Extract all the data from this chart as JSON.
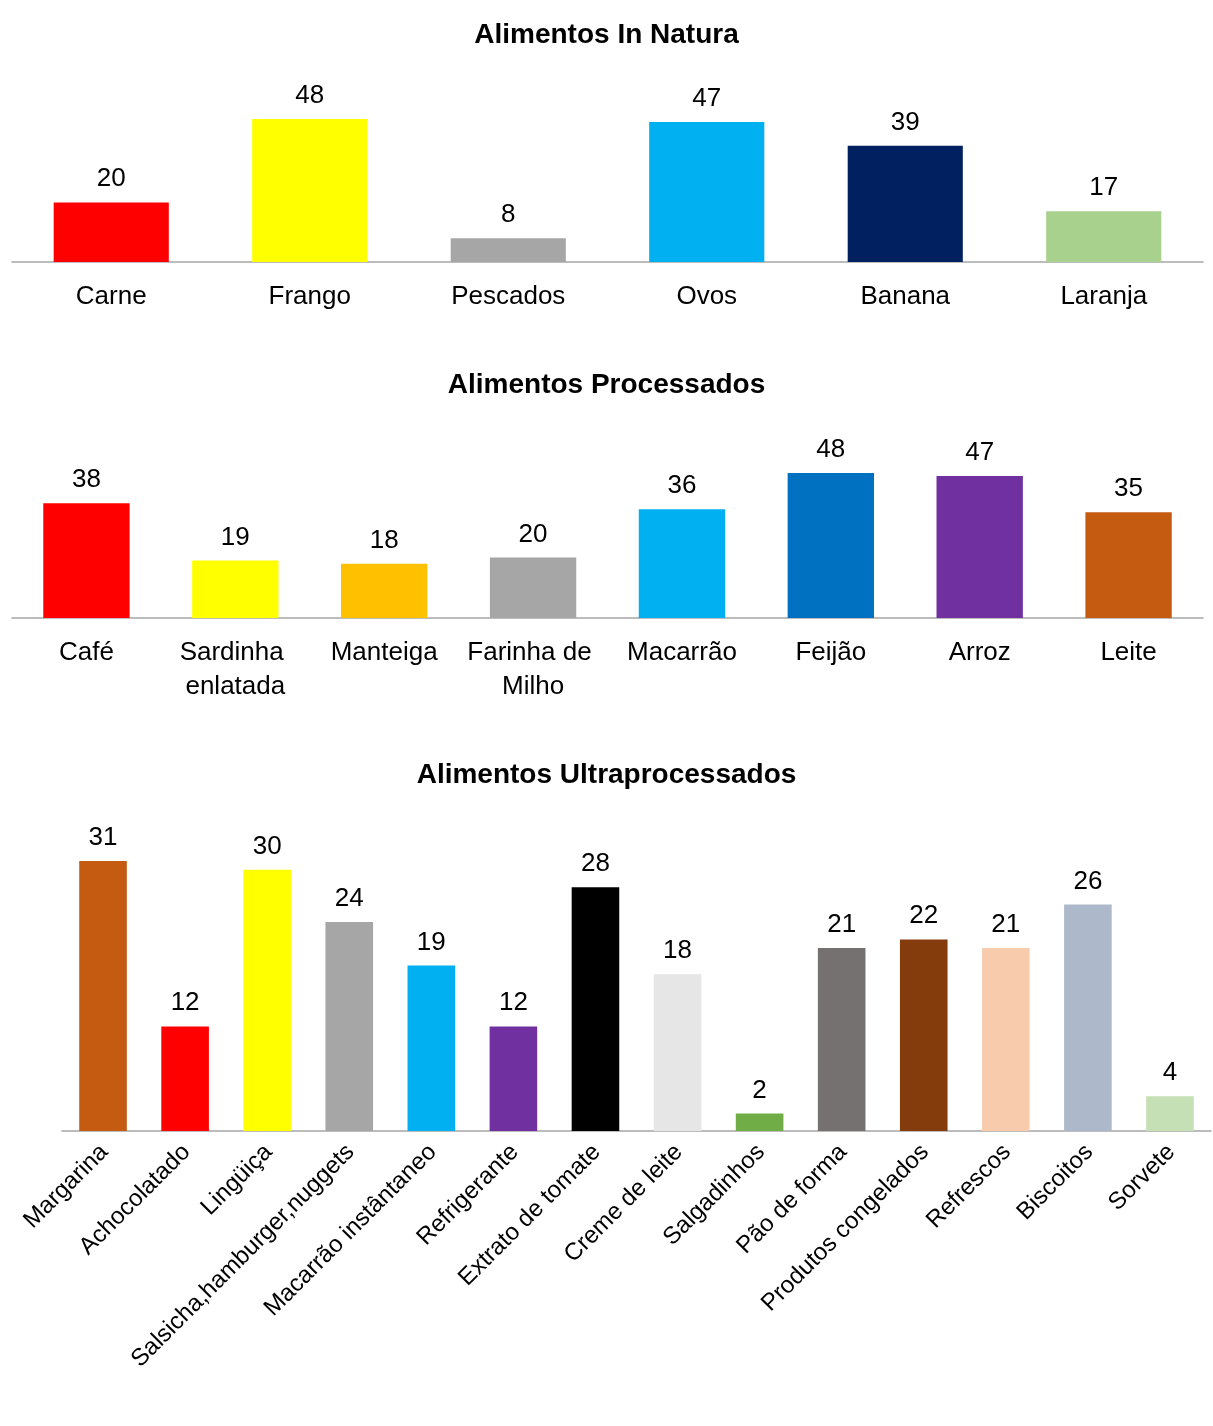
{
  "chart_data": [
    {
      "type": "bar",
      "title": "Alimentos In Natura",
      "categories": [
        "Carne",
        "Frango",
        "Pescados",
        "Ovos",
        "Banana",
        "Laranja"
      ],
      "values": [
        20,
        48,
        8,
        47,
        39,
        17
      ],
      "colors": [
        "#ff0000",
        "#ffff00",
        "#a6a6a6",
        "#00b0f0",
        "#002060",
        "#a9d18e"
      ],
      "data_labels": true
    },
    {
      "type": "bar",
      "title": "Alimentos Processados",
      "categories": [
        "Café",
        "Sardinha enlatada",
        "Manteiga",
        "Farinha de Milho",
        "Macarrão",
        "Feijão",
        "Arroz",
        "Leite"
      ],
      "values": [
        38,
        19,
        18,
        20,
        36,
        48,
        47,
        35
      ],
      "colors": [
        "#ff0000",
        "#ffff00",
        "#ffc000",
        "#a6a6a6",
        "#00b0f0",
        "#0070c0",
        "#7030a0",
        "#c55a11"
      ],
      "data_labels": true
    },
    {
      "type": "bar",
      "title": "Alimentos Ultraprocessados",
      "categories": [
        "Margarina",
        "Achocolatado",
        "Lingüiça",
        "Salsicha,hamburger,nuggets",
        "Macarrão instântaneo",
        "Refrigerante",
        "Extrato de tomate",
        "Creme de leite",
        "Salgadinhos",
        "Pão de forma",
        "Produtos congelados",
        "Refrescos",
        "Biscoitos",
        "Sorvete"
      ],
      "values": [
        31,
        12,
        30,
        24,
        19,
        12,
        28,
        18,
        2,
        21,
        22,
        21,
        26,
        4
      ],
      "colors": [
        "#c55a11",
        "#ff0000",
        "#ffff00",
        "#a6a6a6",
        "#00b0f0",
        "#7030a0",
        "#000000",
        "#e7e6e6",
        "#70ad47",
        "#767171",
        "#843c0c",
        "#f8cbad",
        "#adb9ca",
        "#c5e0b4"
      ],
      "data_labels": true
    }
  ]
}
